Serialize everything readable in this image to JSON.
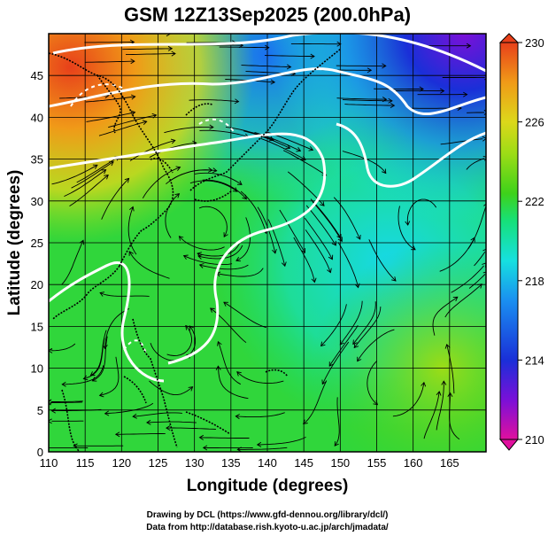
{
  "title": "GSM 12Z13Sep2025 (200.0hPa)",
  "xlabel": "Longitude (degrees)",
  "ylabel": "Latitude  (degrees)",
  "credits": {
    "line1": "Drawing by DCL (https://www.gfd-dennou.org/library/dcl/)",
    "line2": "Data from http://database.rish.kyoto-u.ac.jp/arch/jmadata/"
  },
  "map": {
    "lon_range": [
      110,
      170
    ],
    "lat_range": [
      0,
      50
    ],
    "lon_ticks": [
      110,
      115,
      120,
      125,
      130,
      135,
      140,
      145,
      150,
      155,
      160,
      165
    ],
    "lat_ticks": [
      0,
      5,
      10,
      15,
      20,
      25,
      30,
      35,
      40,
      45
    ],
    "grid": true,
    "field": "temperature (K)",
    "overlays": [
      "streamlines",
      "white contours",
      "coastlines"
    ]
  },
  "colorbar": {
    "ticks": [
      210,
      214,
      218,
      222,
      226,
      230
    ],
    "range": [
      210,
      230
    ],
    "colors": [
      "#e0109e",
      "#7a10d8",
      "#1a2fd8",
      "#1a8ff0",
      "#16e0e0",
      "#16e07a",
      "#3ed21a",
      "#9cdc16",
      "#dcd81a",
      "#f09a18",
      "#e8401a"
    ]
  }
}
